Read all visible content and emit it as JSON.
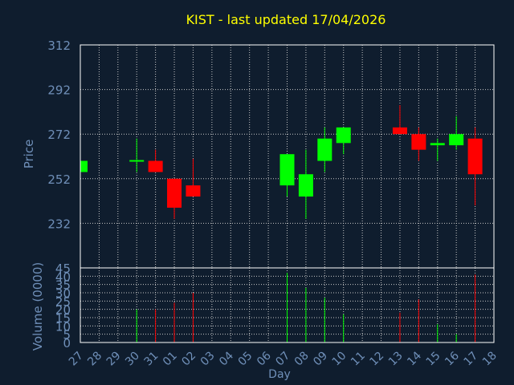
{
  "title": "KIST - last updated 17/04/2026",
  "colors": {
    "background": "#0f1d2e",
    "axis": "#ffffff",
    "grid": "#c8c8c8",
    "label": "#6f8fb8",
    "title": "#ffff00",
    "up": "#00ff00",
    "down": "#ff0000"
  },
  "chart_data": [
    {
      "type": "candlestick",
      "ylabel": "Price",
      "ylim": [
        212,
        312
      ],
      "yticks": [
        232,
        252,
        272,
        292,
        312
      ],
      "grid": true,
      "x_categories": [
        "27",
        "28",
        "29",
        "30",
        "31",
        "01",
        "02",
        "03",
        "04",
        "05",
        "06",
        "07",
        "08",
        "09",
        "10",
        "11",
        "12",
        "13",
        "14",
        "15",
        "16",
        "17",
        "18"
      ],
      "candles": [
        {
          "day": "27",
          "open": 255,
          "close": 260,
          "high": 260,
          "low": 255
        },
        {
          "day": "30",
          "open": 260,
          "close": 260,
          "high": 270,
          "low": 255
        },
        {
          "day": "31",
          "open": 260,
          "close": 255,
          "high": 265,
          "low": 255
        },
        {
          "day": "01",
          "open": 252,
          "close": 239,
          "high": 252,
          "low": 234
        },
        {
          "day": "02",
          "open": 249,
          "close": 244,
          "high": 261,
          "low": 244
        },
        {
          "day": "07",
          "open": 249,
          "close": 263,
          "high": 263,
          "low": 244
        },
        {
          "day": "08",
          "open": 244,
          "close": 254,
          "high": 265,
          "low": 234
        },
        {
          "day": "09",
          "open": 260,
          "close": 270,
          "high": 275,
          "low": 255
        },
        {
          "day": "10",
          "open": 268,
          "close": 275,
          "high": 275,
          "low": 263
        },
        {
          "day": "13",
          "open": 275,
          "close": 272,
          "high": 285,
          "low": 272
        },
        {
          "day": "14",
          "open": 272,
          "close": 265,
          "high": 275,
          "low": 260
        },
        {
          "day": "15",
          "open": 267,
          "close": 268,
          "high": 270,
          "low": 260
        },
        {
          "day": "16",
          "open": 267,
          "close": 272,
          "high": 280,
          "low": 265
        },
        {
          "day": "17",
          "open": 270,
          "close": 254,
          "high": 275,
          "low": 240
        }
      ]
    },
    {
      "type": "bar",
      "ylabel": "Volume (0000)",
      "xlabel": "Day",
      "ylim": [
        0,
        45
      ],
      "yticks": [
        0,
        5,
        10,
        15,
        20,
        25,
        30,
        35,
        40,
        45
      ],
      "grid": true,
      "categories": [
        "27",
        "28",
        "29",
        "30",
        "31",
        "01",
        "02",
        "03",
        "04",
        "05",
        "06",
        "07",
        "08",
        "09",
        "10",
        "11",
        "12",
        "13",
        "14",
        "15",
        "16",
        "17",
        "18"
      ],
      "bars": [
        {
          "day": "30",
          "value": 20,
          "direction": "up"
        },
        {
          "day": "31",
          "value": 20,
          "direction": "down"
        },
        {
          "day": "01",
          "value": 24,
          "direction": "down"
        },
        {
          "day": "02",
          "value": 30,
          "direction": "down"
        },
        {
          "day": "07",
          "value": 42,
          "direction": "up"
        },
        {
          "day": "08",
          "value": 33,
          "direction": "up"
        },
        {
          "day": "09",
          "value": 27,
          "direction": "up"
        },
        {
          "day": "10",
          "value": 17,
          "direction": "up"
        },
        {
          "day": "13",
          "value": 18,
          "direction": "down"
        },
        {
          "day": "14",
          "value": 26,
          "direction": "down"
        },
        {
          "day": "15",
          "value": 11,
          "direction": "up"
        },
        {
          "day": "16",
          "value": 5,
          "direction": "up"
        },
        {
          "day": "17",
          "value": 41,
          "direction": "down"
        }
      ]
    }
  ]
}
